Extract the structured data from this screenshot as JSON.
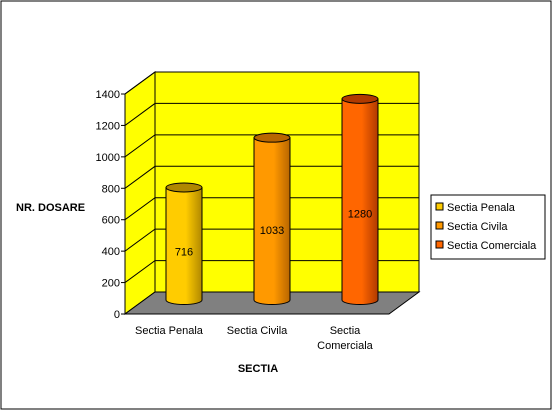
{
  "chart_data": {
    "type": "bar",
    "variant": "3d-cylinder",
    "title": "",
    "xlabel": "SECTIA",
    "ylabel": "NR. DOSARE",
    "categories": [
      "Sectia Penala",
      "Sectia Civila",
      "Sectia Comerciala"
    ],
    "category_label_lines": [
      [
        "Sectia Penala"
      ],
      [
        "Sectia Civila"
      ],
      [
        "Sectia",
        "Comerciala"
      ]
    ],
    "values": [
      716,
      1033,
      1280
    ],
    "data_labels": [
      "716",
      "1033",
      "1280"
    ],
    "ylim": [
      0,
      1400
    ],
    "yticks": [
      0,
      200,
      400,
      600,
      800,
      1000,
      1200,
      1400
    ],
    "ytick_labels": [
      "0",
      "200",
      "400",
      "600",
      "800",
      "1000",
      "1200",
      "1400"
    ],
    "grid": true,
    "legend": {
      "placement": "right",
      "entries": [
        "Sectia Penala",
        "Sectia Civila",
        "Sectia Comerciala"
      ]
    },
    "colors": {
      "back_wall": "#ffff00",
      "floor": "#808080",
      "bars": [
        "#ffcc00",
        "#ff9900",
        "#ff6600"
      ],
      "bars_dark": [
        "#b08800",
        "#b86600",
        "#b03a00"
      ]
    }
  }
}
